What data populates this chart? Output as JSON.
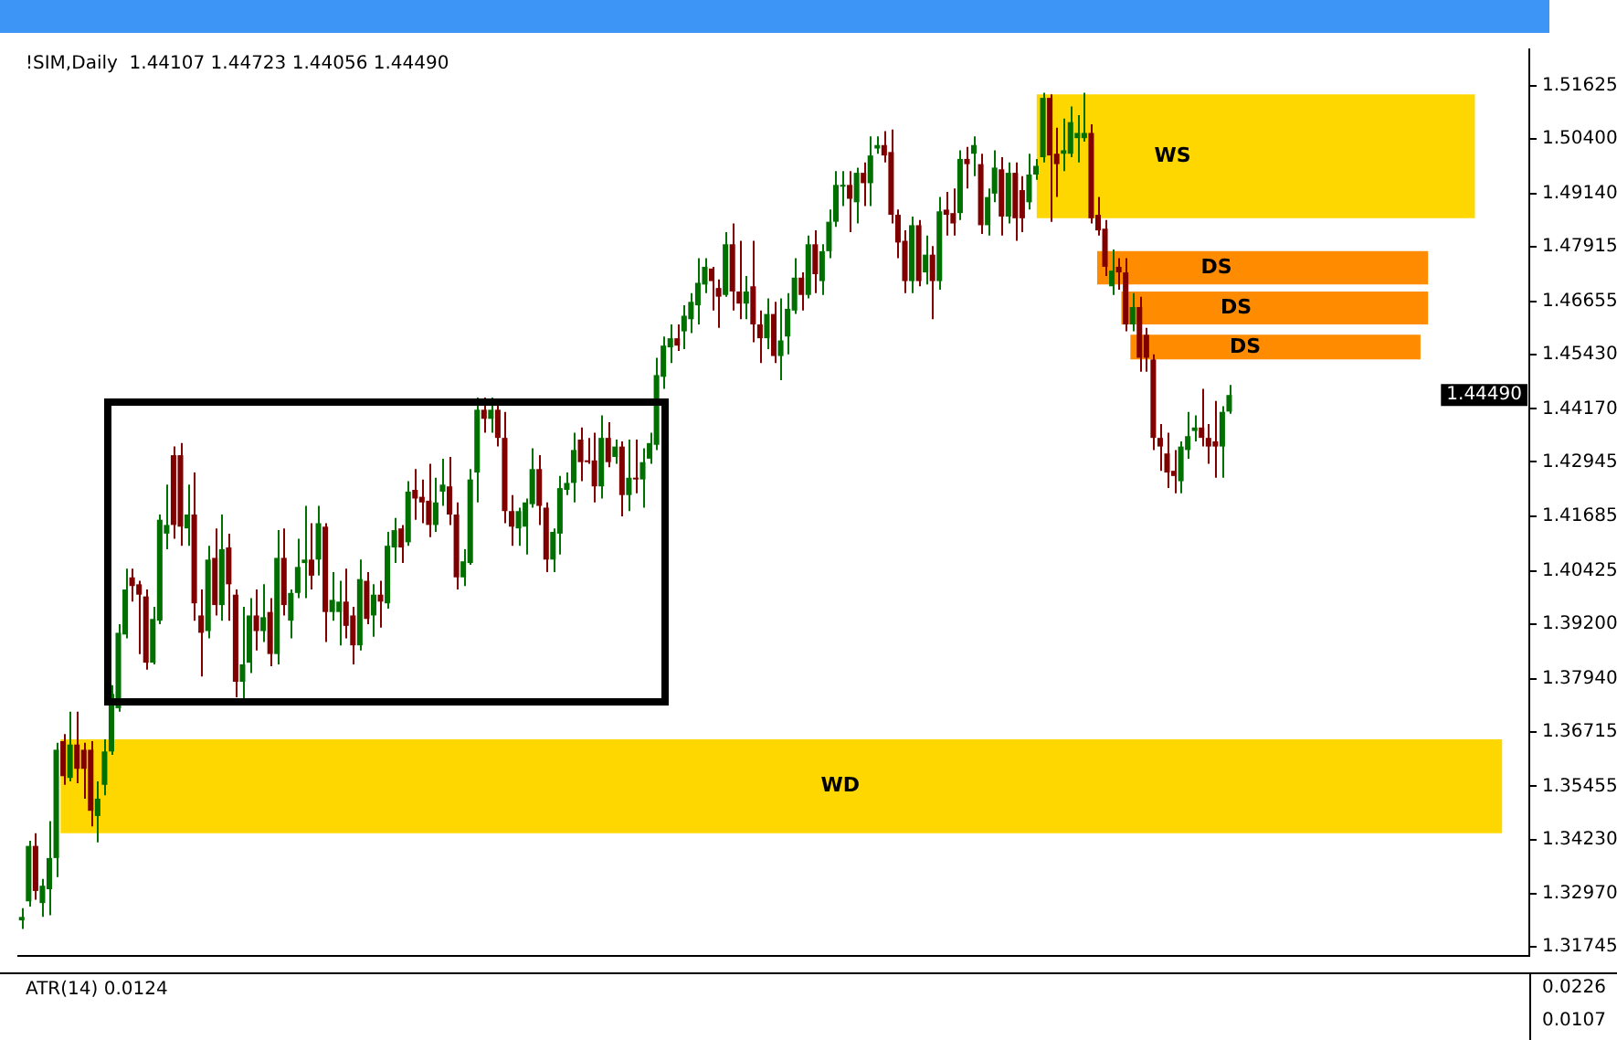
{
  "chart_data": [
    {
      "type": "candlestick",
      "title": "!SIM,Daily  1.44107 1.44723 1.44056 1.44490",
      "categories": [
        null,
        null,
        null,
        null,
        null,
        null,
        null,
        null,
        null,
        null,
        null,
        null,
        null,
        null,
        null,
        null,
        null,
        null,
        null,
        null,
        null,
        null,
        null,
        null,
        null,
        null,
        null,
        null,
        null,
        null,
        null,
        null,
        null,
        null,
        null,
        null,
        null,
        null,
        null,
        null,
        null,
        null,
        null,
        null,
        null,
        null,
        null,
        null,
        null,
        null,
        null,
        null,
        null,
        null,
        null,
        null,
        null,
        null,
        null,
        null,
        null,
        null,
        null,
        null,
        null,
        null,
        null,
        null,
        null,
        null,
        null,
        null,
        null,
        null,
        null,
        null,
        null,
        null,
        null,
        null,
        null,
        null,
        null,
        null,
        null,
        null,
        null,
        null,
        null,
        null,
        null,
        null,
        null,
        null,
        null,
        null,
        null,
        null,
        null,
        null,
        null,
        null,
        null,
        null,
        null,
        null,
        null,
        null,
        null,
        null,
        null,
        null,
        null,
        null,
        null,
        null,
        null,
        null,
        null,
        null,
        null,
        null,
        null,
        null,
        null,
        null,
        null,
        null,
        null,
        null,
        null,
        null,
        null,
        null,
        null,
        null,
        null,
        null,
        null,
        null,
        null,
        null,
        null,
        null,
        null,
        null,
        null,
        null,
        null,
        null,
        null,
        null,
        null,
        null,
        null,
        null,
        null,
        null,
        null,
        null,
        null,
        null,
        null,
        null,
        null,
        null,
        null,
        null,
        null,
        null,
        null,
        null,
        null,
        null,
        null,
        null,
        null,
        null,
        null,
        null,
        null,
        null,
        null,
        null,
        null,
        null,
        null,
        null,
        null,
        null,
        null,
        null,
        null,
        null,
        null,
        null,
        null,
        null,
        null,
        null,
        null,
        null,
        null,
        null,
        null,
        null,
        null,
        null,
        null,
        null,
        null,
        null,
        null,
        null,
        null,
        null,
        null,
        null,
        null
      ],
      "ohlc": [
        [
          1.3236,
          1.3264,
          1.3216,
          1.3244
        ],
        [
          1.328,
          1.342,
          1.3268,
          1.3408
        ],
        [
          1.3408,
          1.3437,
          1.3284,
          1.3304
        ],
        [
          1.3276,
          1.3332,
          1.3244,
          1.3316
        ],
        [
          1.3308,
          1.3465,
          1.3248,
          1.338
        ],
        [
          1.338,
          1.3646,
          1.3336,
          1.363
        ],
        [
          1.365,
          1.3666,
          1.3549,
          1.3569
        ],
        [
          1.3565,
          1.3718,
          1.3557,
          1.3642
        ],
        [
          1.3642,
          1.3718,
          1.3553,
          1.3586
        ],
        [
          1.363,
          1.3646,
          1.3517,
          1.3586
        ],
        [
          1.363,
          1.365,
          1.3453,
          1.3489
        ],
        [
          1.3477,
          1.3557,
          1.3416,
          1.3517
        ],
        [
          1.3549,
          1.3654,
          1.3525,
          1.3626
        ],
        [
          1.3626,
          1.3779,
          1.3618,
          1.3759
        ],
        [
          1.3726,
          1.392,
          1.3718,
          1.39
        ],
        [
          1.3896,
          1.4048,
          1.3887,
          1.4
        ],
        [
          1.4028,
          1.4048,
          1.3972,
          1.4008
        ],
        [
          1.4012,
          1.402,
          1.3851,
          1.3988
        ],
        [
          1.3984,
          1.4,
          1.3815,
          1.3831
        ],
        [
          1.3831,
          1.396,
          1.3827,
          1.3932
        ],
        [
          1.3928,
          1.4173,
          1.392,
          1.4161
        ],
        [
          1.4129,
          1.4242,
          1.4093,
          1.4149
        ],
        [
          1.431,
          1.433,
          1.4117,
          1.4149
        ],
        [
          1.431,
          1.4338,
          1.4101,
          1.4145
        ],
        [
          1.4141,
          1.4242,
          1.4101,
          1.4173
        ],
        [
          1.4173,
          1.427,
          1.3928,
          1.3968
        ],
        [
          1.394,
          1.4,
          1.3799,
          1.39
        ],
        [
          1.3904,
          1.4101,
          1.3887,
          1.4069
        ],
        [
          1.4073,
          1.4141,
          1.394,
          1.3964
        ],
        [
          1.3964,
          1.4173,
          1.3928,
          1.4093
        ],
        [
          1.4097,
          1.4129,
          1.3928,
          1.4012
        ],
        [
          1.3988,
          1.4,
          1.3751,
          1.3787
        ],
        [
          1.3787,
          1.396,
          1.3743,
          1.3827
        ],
        [
          1.3831,
          1.398,
          1.3807,
          1.394
        ],
        [
          1.394,
          1.4,
          1.3859,
          1.3904
        ],
        [
          1.3904,
          1.4012,
          1.3879,
          1.3936
        ],
        [
          1.3948,
          1.398,
          1.3823,
          1.3851
        ],
        [
          1.3851,
          1.4137,
          1.3827,
          1.4073
        ],
        [
          1.4073,
          1.4141,
          1.394,
          1.3964
        ],
        [
          1.3928,
          1.4,
          1.3887,
          1.3992
        ],
        [
          1.3992,
          1.4117,
          1.398,
          1.4052
        ],
        [
          1.4061,
          1.4193,
          1.398,
          1.4069
        ],
        [
          1.4069,
          1.4153,
          1.4,
          1.4032
        ],
        [
          1.4069,
          1.4193,
          1.4032,
          1.4153
        ],
        [
          1.4145,
          1.4153,
          1.3879,
          1.3948
        ],
        [
          1.3948,
          1.404,
          1.3928,
          1.3976
        ],
        [
          1.3948,
          1.402,
          1.3871,
          1.3972
        ],
        [
          1.3972,
          1.4048,
          1.3887,
          1.3916
        ],
        [
          1.394,
          1.396,
          1.3827,
          1.3871
        ],
        [
          1.3871,
          1.4069,
          1.3859,
          1.4024
        ],
        [
          1.402,
          1.404,
          1.392,
          1.3932
        ],
        [
          1.394,
          1.4012,
          1.3891,
          1.3988
        ],
        [
          1.3988,
          1.402,
          1.3912,
          1.3972
        ],
        [
          1.3968,
          1.4133,
          1.3956,
          1.4101
        ],
        [
          1.4097,
          1.4165,
          1.4061,
          1.4137
        ],
        [
          1.4141,
          1.4149,
          1.4061,
          1.4097
        ],
        [
          1.4109,
          1.425,
          1.4101,
          1.4226
        ],
        [
          1.423,
          1.4278,
          1.4161,
          1.421
        ],
        [
          1.4214,
          1.4254,
          1.4153,
          1.4201
        ],
        [
          1.4205,
          1.429,
          1.4121,
          1.4149
        ],
        [
          1.4149,
          1.4258,
          1.4133,
          1.4201
        ],
        [
          1.4226,
          1.4302,
          1.4193,
          1.4242
        ],
        [
          1.4238,
          1.4306,
          1.4149,
          1.4173
        ],
        [
          1.4173,
          1.4201,
          1.4,
          1.4028
        ],
        [
          1.4028,
          1.4093,
          1.4008,
          1.4065
        ],
        [
          1.4061,
          1.4278,
          1.4057,
          1.4254
        ],
        [
          1.427,
          1.4443,
          1.4201,
          1.4415
        ],
        [
          1.4415,
          1.4443,
          1.4362,
          1.4394
        ],
        [
          1.4394,
          1.4443,
          1.4362,
          1.4415
        ],
        [
          1.4415,
          1.4435,
          1.433,
          1.435
        ],
        [
          1.435,
          1.441,
          1.4153,
          1.4181
        ],
        [
          1.4181,
          1.4218,
          1.4101,
          1.4145
        ],
        [
          1.4141,
          1.4189,
          1.4101,
          1.4181
        ],
        [
          1.4145,
          1.421,
          1.4081,
          1.4201
        ],
        [
          1.4197,
          1.4326,
          1.4189,
          1.4278
        ],
        [
          1.4278,
          1.431,
          1.4149,
          1.4193
        ],
        [
          1.4189,
          1.4201,
          1.404,
          1.4069
        ],
        [
          1.4069,
          1.4141,
          1.404,
          1.4133
        ],
        [
          1.4129,
          1.4262,
          1.4081,
          1.4234
        ],
        [
          1.423,
          1.427,
          1.4218,
          1.4246
        ],
        [
          1.4246,
          1.4362,
          1.4201,
          1.4322
        ],
        [
          1.4346,
          1.4374,
          1.425,
          1.4294
        ],
        [
          1.4298,
          1.435,
          1.429,
          1.4294
        ],
        [
          1.4298,
          1.4362,
          1.4201,
          1.4238
        ],
        [
          1.4238,
          1.4402,
          1.421,
          1.435
        ],
        [
          1.435,
          1.4386,
          1.4282,
          1.4294
        ],
        [
          1.4306,
          1.4346,
          1.429,
          1.433
        ],
        [
          1.433,
          1.4342,
          1.4169,
          1.4218
        ],
        [
          1.4218,
          1.4346,
          1.4181,
          1.4258
        ],
        [
          1.4258,
          1.4346,
          1.4222,
          1.4254
        ],
        [
          1.4254,
          1.4326,
          1.4189,
          1.4294
        ],
        [
          1.4302,
          1.4362,
          1.429,
          1.4338
        ],
        [
          1.4334,
          1.4535,
          1.4322,
          1.4495
        ],
        [
          1.4491,
          1.4584,
          1.4463,
          1.4563
        ],
        [
          1.4559,
          1.4612,
          1.4523,
          1.458
        ],
        [
          1.458,
          1.4612,
          1.4551,
          1.4563
        ],
        [
          1.4596,
          1.4656,
          1.4555,
          1.4632
        ],
        [
          1.4624,
          1.4684,
          1.4592,
          1.4664
        ],
        [
          1.4656,
          1.4765,
          1.4612,
          1.4708
        ],
        [
          1.4704,
          1.4765,
          1.4684,
          1.4745
        ],
        [
          1.4741,
          1.4745,
          1.4644,
          1.4712
        ],
        [
          1.4696,
          1.4716,
          1.4604,
          1.4676
        ],
        [
          1.468,
          1.4825,
          1.4676,
          1.4797
        ],
        [
          1.4797,
          1.4845,
          1.4644,
          1.4688
        ],
        [
          1.4688,
          1.4805,
          1.4624,
          1.466
        ],
        [
          1.466,
          1.4724,
          1.4624,
          1.4688
        ],
        [
          1.47,
          1.4805,
          1.4571,
          1.4612
        ],
        [
          1.4612,
          1.4644,
          1.4523,
          1.458
        ],
        [
          1.458,
          1.4672,
          1.4555,
          1.4636
        ],
        [
          1.4636,
          1.4664,
          1.4523,
          1.4539
        ],
        [
          1.4539,
          1.4672,
          1.4483,
          1.4575
        ],
        [
          1.4584,
          1.4684,
          1.4543,
          1.4648
        ],
        [
          1.4644,
          1.4765,
          1.4636,
          1.472
        ],
        [
          1.472,
          1.4732,
          1.4644,
          1.468
        ],
        [
          1.468,
          1.4817,
          1.4672,
          1.4797
        ],
        [
          1.4797,
          1.4829,
          1.4684,
          1.4728
        ],
        [
          1.4712,
          1.4797,
          1.468,
          1.4781
        ],
        [
          1.4781,
          1.4877,
          1.4765,
          1.4849
        ],
        [
          1.4849,
          1.4966,
          1.4837,
          1.4934
        ],
        [
          1.493,
          1.4966,
          1.4885,
          1.4934
        ],
        [
          1.4934,
          1.4966,
          1.4825,
          1.4902
        ],
        [
          1.4894,
          1.4974,
          1.4845,
          1.4962
        ],
        [
          1.4962,
          1.4986,
          1.4885,
          1.4938
        ],
        [
          1.4938,
          1.5046,
          1.4885,
          1.5002
        ],
        [
          1.5018,
          1.5046,
          1.5006,
          1.5026
        ],
        [
          1.5026,
          1.5058,
          1.4986,
          1.5002
        ],
        [
          1.501,
          1.5062,
          1.4845,
          1.4865
        ],
        [
          1.4865,
          1.4877,
          1.4765,
          1.4801
        ],
        [
          1.4805,
          1.4829,
          1.4684,
          1.4712
        ],
        [
          1.4712,
          1.4861,
          1.4684,
          1.4841
        ],
        [
          1.4841,
          1.4853,
          1.47,
          1.4712
        ],
        [
          1.4732,
          1.4817,
          1.4704,
          1.4773
        ],
        [
          1.4773,
          1.4793,
          1.4624,
          1.4712
        ],
        [
          1.4712,
          1.4906,
          1.4692,
          1.4873
        ],
        [
          1.4877,
          1.4918,
          1.4817,
          1.4865
        ],
        [
          1.4869,
          1.4926,
          1.4817,
          1.4845
        ],
        [
          1.4869,
          1.5014,
          1.4853,
          1.4994
        ],
        [
          1.4994,
          1.5022,
          1.4926,
          1.4982
        ],
        [
          1.5006,
          1.5046,
          1.4954,
          1.5026
        ],
        [
          1.4982,
          1.5006,
          1.4821,
          1.4841
        ],
        [
          1.4841,
          1.4926,
          1.4817,
          1.4906
        ],
        [
          1.4914,
          1.5014,
          1.4894,
          1.4974
        ],
        [
          1.497,
          1.4998,
          1.4817,
          1.4861
        ],
        [
          1.4861,
          1.4986,
          1.4845,
          1.4962
        ],
        [
          1.4962,
          1.4986,
          1.4805,
          1.4857
        ],
        [
          1.4922,
          1.4954,
          1.4825,
          1.4857
        ],
        [
          1.4894,
          1.5006,
          1.4877,
          1.4958
        ],
        [
          1.4958,
          1.4994,
          1.4946,
          1.4978
        ],
        [
          1.4998,
          1.5147,
          1.4986,
          1.5135
        ],
        [
          1.5135,
          1.5143,
          1.4849,
          1.5002
        ],
        [
          1.5006,
          1.5066,
          1.4906,
          1.4982
        ],
        [
          1.5006,
          1.5087,
          1.4966,
          1.5014
        ],
        [
          1.5006,
          1.5115,
          1.4998,
          1.5079
        ],
        [
          1.5042,
          1.5095,
          1.4986,
          1.5054
        ],
        [
          1.5042,
          1.5147,
          1.5034,
          1.5054
        ],
        [
          1.5054,
          1.5074,
          1.4845,
          1.4857
        ],
        [
          1.4865,
          1.4906,
          1.4817,
          1.4829
        ],
        [
          1.4833,
          1.4853,
          1.4724,
          1.4745
        ],
        [
          1.47,
          1.4785,
          1.468,
          1.4736
        ],
        [
          1.4745,
          1.4765,
          1.4692,
          1.4732
        ],
        [
          1.4732,
          1.4765,
          1.4596,
          1.4612
        ],
        [
          1.4612,
          1.4684,
          1.4596,
          1.4652
        ],
        [
          1.4652,
          1.4676,
          1.4503,
          1.4535
        ],
        [
          1.4588,
          1.4604,
          1.4503,
          1.4535
        ],
        [
          1.4531,
          1.4543,
          1.4322,
          1.435
        ],
        [
          1.435,
          1.4382,
          1.4274,
          1.433
        ],
        [
          1.4314,
          1.4362,
          1.4234,
          1.427
        ],
        [
          1.4274,
          1.4322,
          1.4222,
          1.4262
        ],
        [
          1.425,
          1.4342,
          1.4222,
          1.433
        ],
        [
          1.4322,
          1.441,
          1.4302,
          1.4354
        ],
        [
          1.4366,
          1.4402,
          1.4342,
          1.4374
        ],
        [
          1.4374,
          1.4463,
          1.433,
          1.435
        ],
        [
          1.435,
          1.4382,
          1.429,
          1.433
        ],
        [
          1.4342,
          1.4435,
          1.4258,
          1.433
        ],
        [
          1.433,
          1.4423,
          1.4258,
          1.441
        ],
        [
          1.44107,
          1.44723,
          1.44056,
          1.4449
        ],
        null,
        null,
        null,
        null,
        null,
        null,
        null,
        null,
        null,
        null,
        null,
        null,
        null,
        null,
        null,
        null,
        null,
        null,
        null,
        null,
        null,
        null,
        null,
        null,
        null,
        null,
        null,
        null,
        null,
        null,
        null,
        null,
        null,
        null,
        null,
        null,
        null,
        null,
        null,
        null,
        null,
        null,
        null
      ],
      "colors": [
        "#007000",
        "#007000",
        "#800000",
        "#007000",
        "#007000",
        "#007000",
        "#800000",
        "#007000",
        "#800000",
        "#800000",
        "#800000",
        "#007000",
        "#007000",
        "#007000",
        "#007000",
        "#007000",
        "#800000",
        "#800000",
        "#800000",
        "#007000",
        "#007000",
        "#007000",
        "#800000",
        "#800000",
        "#007000",
        "#800000",
        "#800000",
        "#007000",
        "#800000",
        "#007000",
        "#800000",
        "#800000",
        "#007000",
        "#007000",
        "#800000",
        "#007000",
        "#800000",
        "#007000",
        "#800000",
        "#007000",
        "#007000",
        "#007000",
        "#800000",
        "#007000",
        "#800000",
        "#007000",
        "#007000",
        "#800000",
        "#800000",
        "#007000",
        "#800000",
        "#007000",
        "#800000",
        "#007000",
        "#007000",
        "#800000",
        "#007000",
        "#800000",
        "#800000",
        "#800000",
        "#007000",
        "#007000",
        "#800000",
        "#800000",
        "#007000",
        "#007000",
        "#007000",
        "#800000",
        "#007000",
        "#800000",
        "#800000",
        "#800000",
        "#007000",
        "#007000",
        "#007000",
        "#800000",
        "#800000",
        "#007000",
        "#007000",
        "#007000",
        "#007000",
        "#800000",
        "#800000",
        "#800000",
        "#007000",
        "#800000",
        "#007000",
        "#800000",
        "#007000",
        "#800000",
        "#007000",
        "#007000",
        "#007000",
        "#007000",
        "#007000",
        "#800000",
        "#007000",
        "#007000",
        "#007000",
        "#007000",
        "#800000",
        "#800000",
        "#007000",
        "#800000",
        "#800000",
        "#007000",
        "#800000",
        "#800000",
        "#007000",
        "#800000",
        "#007000",
        "#007000",
        "#007000",
        "#800000",
        "#007000",
        "#800000",
        "#007000",
        "#007000",
        "#007000",
        "#007000",
        "#800000",
        "#007000",
        "#800000",
        "#007000",
        "#007000",
        "#800000",
        "#800000",
        "#800000",
        "#800000",
        "#007000",
        "#800000",
        "#007000",
        "#800000",
        "#007000",
        "#800000",
        "#800000",
        "#007000",
        "#800000",
        "#007000",
        "#800000",
        "#007000",
        "#007000",
        "#800000",
        "#007000",
        "#800000",
        "#800000",
        "#007000",
        "#007000",
        "#007000",
        "#800000",
        "#800000",
        "#007000",
        "#007000",
        "#007000",
        "#007000",
        "#800000",
        "#800000",
        "#800000",
        "#007000",
        "#800000",
        "#800000",
        "#007000",
        "#800000",
        "#800000",
        "#800000",
        "#800000",
        "#800000",
        "#800000",
        "#007000",
        "#007000",
        "#007000",
        "#800000",
        "#800000",
        "#800000",
        "#007000",
        "#007000",
        null,
        null,
        null,
        null,
        null,
        null,
        null,
        null,
        null,
        null,
        null,
        null,
        null,
        null,
        null,
        null,
        null,
        null,
        null,
        null,
        null,
        null,
        null,
        null,
        null,
        null,
        null,
        null,
        null,
        null,
        null,
        null,
        null,
        null,
        null,
        null,
        null,
        null,
        null,
        null,
        null,
        null,
        null
      ],
      "ylim": [
        1.3154,
        1.5247
      ],
      "yticks": [
        1.31745,
        {
          "value": 1.3297,
          "label": "1.32970"
        },
        {
          "value": 1.3423,
          "label": "1.34230"
        },
        1.35455,
        1.36715,
        {
          "value": 1.3794,
          "label": "1.37940"
        },
        {
          "value": 1.392,
          "label": "1.39200"
        },
        1.40425,
        1.41685,
        1.42945,
        {
          "value": 1.4417,
          "label": "1.44170"
        },
        {
          "value": 1.4543,
          "label": "1.45430"
        },
        1.46655,
        1.47915,
        {
          "value": 1.4914,
          "label": "1.49140"
        },
        {
          "value": 1.504,
          "label": "1.50400"
        },
        1.51625
      ],
      "tick_labels": "y",
      "bands": [
        {
          "axis": "y",
          "from": 1.4857,
          "to": 1.5143,
          "label": "WS",
          "color": "#ffd700"
        },
        {
          "axis": "y",
          "from": 1.4704,
          "to": 1.4781,
          "label": "DS",
          "color": "#ff8c00"
        },
        {
          "axis": "y",
          "from": 1.4612,
          "to": 1.4688,
          "label": "DS",
          "color": "#ff8c00"
        },
        {
          "axis": "y",
          "from": 1.4531,
          "to": 1.4588,
          "label": "DS",
          "color": "#ff8c00"
        },
        {
          "axis": "y",
          "from": 1.3437,
          "to": 1.3654,
          "label": "WD",
          "color": "#ffd700"
        }
      ],
      "annotations": [
        "1.44490"
      ]
    },
    {
      "type": "other",
      "title": "ATR(14) 0.0124",
      "annotations": [
        "0.0226",
        "0.0107"
      ]
    }
  ]
}
